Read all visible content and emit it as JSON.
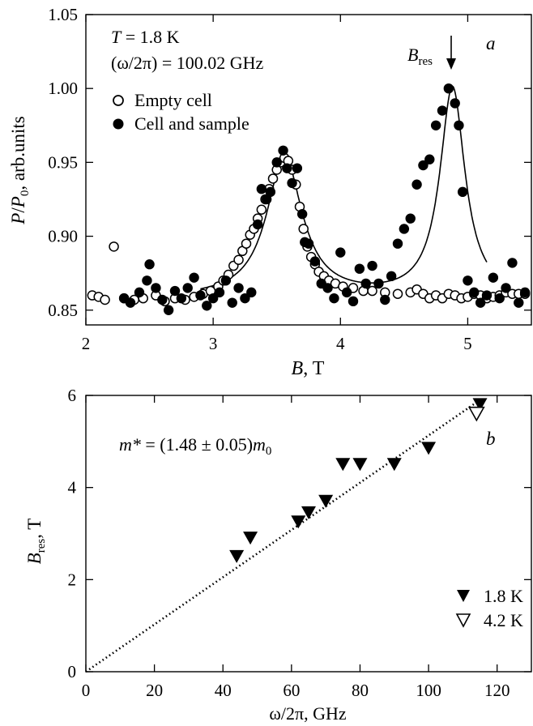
{
  "chart_data": [
    {
      "type": "scatter",
      "panel_label": "a",
      "annotations": {
        "temperature_var": "T",
        "temperature_value": " = 1.8 K",
        "frequency": "(ω/2π) = 100.02 GHz",
        "bres_base": "B",
        "bres_sub": "res"
      },
      "xlabel": {
        "var": "B",
        "rest": ", T"
      },
      "ylabel": {
        "var1": "P",
        "mid": "/",
        "var2": "P",
        "sub": "0",
        "rest": ", arb.units"
      },
      "xlim": [
        2,
        5.5
      ],
      "ylim": [
        0.84,
        1.05
      ],
      "xticks": [
        "2",
        "3",
        "4",
        "5"
      ],
      "yticks": [
        "0.85",
        "0.90",
        "0.95",
        "1.00",
        "1.05"
      ],
      "legend_position": "top-left",
      "series": [
        {
          "name": "Empty cell",
          "marker": "open-circle",
          "points": [
            [
              2.05,
              0.86
            ],
            [
              2.1,
              0.859
            ],
            [
              2.15,
              0.857
            ],
            [
              2.22,
              0.893
            ],
            [
              2.3,
              0.858
            ],
            [
              2.38,
              0.857
            ],
            [
              2.45,
              0.858
            ],
            [
              2.55,
              0.86
            ],
            [
              2.62,
              0.856
            ],
            [
              2.7,
              0.858
            ],
            [
              2.78,
              0.857
            ],
            [
              2.85,
              0.859
            ],
            [
              2.92,
              0.861
            ],
            [
              2.98,
              0.863
            ],
            [
              3.04,
              0.866
            ],
            [
              3.08,
              0.87
            ],
            [
              3.12,
              0.874
            ],
            [
              3.16,
              0.88
            ],
            [
              3.2,
              0.884
            ],
            [
              3.23,
              0.89
            ],
            [
              3.26,
              0.895
            ],
            [
              3.29,
              0.901
            ],
            [
              3.32,
              0.905
            ],
            [
              3.35,
              0.912
            ],
            [
              3.38,
              0.918
            ],
            [
              3.41,
              0.925
            ],
            [
              3.44,
              0.932
            ],
            [
              3.47,
              0.939
            ],
            [
              3.5,
              0.945
            ],
            [
              3.53,
              0.95
            ],
            [
              3.56,
              0.953
            ],
            [
              3.59,
              0.951
            ],
            [
              3.62,
              0.945
            ],
            [
              3.65,
              0.935
            ],
            [
              3.68,
              0.92
            ],
            [
              3.71,
              0.905
            ],
            [
              3.74,
              0.893
            ],
            [
              3.77,
              0.886
            ],
            [
              3.8,
              0.881
            ],
            [
              3.83,
              0.876
            ],
            [
              3.87,
              0.873
            ],
            [
              3.91,
              0.87
            ],
            [
              3.96,
              0.868
            ],
            [
              4.02,
              0.866
            ],
            [
              4.1,
              0.865
            ],
            [
              4.18,
              0.863
            ],
            [
              4.25,
              0.863
            ],
            [
              4.35,
              0.862
            ],
            [
              4.45,
              0.861
            ],
            [
              4.55,
              0.862
            ],
            [
              4.6,
              0.864
            ],
            [
              4.65,
              0.861
            ],
            [
              4.7,
              0.858
            ],
            [
              4.75,
              0.86
            ],
            [
              4.8,
              0.858
            ],
            [
              4.85,
              0.861
            ],
            [
              4.9,
              0.86
            ],
            [
              4.95,
              0.858
            ],
            [
              5.0,
              0.859
            ],
            [
              5.05,
              0.861
            ],
            [
              5.1,
              0.86
            ],
            [
              5.15,
              0.858
            ],
            [
              5.2,
              0.859
            ],
            [
              5.25,
              0.86
            ],
            [
              5.3,
              0.862
            ],
            [
              5.35,
              0.861
            ],
            [
              5.4,
              0.861
            ],
            [
              5.45,
              0.861
            ]
          ]
        },
        {
          "name": "Cell and sample",
          "marker": "filled-circle",
          "points": [
            [
              2.3,
              0.858
            ],
            [
              2.35,
              0.855
            ],
            [
              2.42,
              0.862
            ],
            [
              2.48,
              0.87
            ],
            [
              2.5,
              0.881
            ],
            [
              2.55,
              0.865
            ],
            [
              2.6,
              0.857
            ],
            [
              2.65,
              0.85
            ],
            [
              2.7,
              0.863
            ],
            [
              2.75,
              0.858
            ],
            [
              2.8,
              0.865
            ],
            [
              2.85,
              0.872
            ],
            [
              2.9,
              0.86
            ],
            [
              2.95,
              0.853
            ],
            [
              3.0,
              0.858
            ],
            [
              3.05,
              0.862
            ],
            [
              3.1,
              0.87
            ],
            [
              3.15,
              0.855
            ],
            [
              3.2,
              0.865
            ],
            [
              3.25,
              0.858
            ],
            [
              3.3,
              0.862
            ],
            [
              3.35,
              0.908
            ],
            [
              3.38,
              0.932
            ],
            [
              3.42,
              0.925
            ],
            [
              3.45,
              0.93
            ],
            [
              3.5,
              0.95
            ],
            [
              3.55,
              0.958
            ],
            [
              3.58,
              0.946
            ],
            [
              3.62,
              0.936
            ],
            [
              3.66,
              0.946
            ],
            [
              3.7,
              0.915
            ],
            [
              3.72,
              0.896
            ],
            [
              3.75,
              0.895
            ],
            [
              3.8,
              0.883
            ],
            [
              3.85,
              0.868
            ],
            [
              3.9,
              0.865
            ],
            [
              3.95,
              0.858
            ],
            [
              4.0,
              0.889
            ],
            [
              4.05,
              0.862
            ],
            [
              4.1,
              0.856
            ],
            [
              4.15,
              0.878
            ],
            [
              4.2,
              0.868
            ],
            [
              4.25,
              0.88
            ],
            [
              4.3,
              0.868
            ],
            [
              4.35,
              0.857
            ],
            [
              4.4,
              0.873
            ],
            [
              4.45,
              0.895
            ],
            [
              4.5,
              0.905
            ],
            [
              4.55,
              0.912
            ],
            [
              4.6,
              0.935
            ],
            [
              4.65,
              0.948
            ],
            [
              4.7,
              0.952
            ],
            [
              4.75,
              0.975
            ],
            [
              4.8,
              0.985
            ],
            [
              4.85,
              1.0
            ],
            [
              4.9,
              0.99
            ],
            [
              4.93,
              0.975
            ],
            [
              4.96,
              0.93
            ],
            [
              5.0,
              0.87
            ],
            [
              5.05,
              0.862
            ],
            [
              5.1,
              0.855
            ],
            [
              5.15,
              0.86
            ],
            [
              5.2,
              0.872
            ],
            [
              5.25,
              0.858
            ],
            [
              5.3,
              0.865
            ],
            [
              5.35,
              0.882
            ],
            [
              5.4,
              0.855
            ],
            [
              5.45,
              0.862
            ]
          ]
        }
      ]
    },
    {
      "type": "scatter",
      "panel_label": "b",
      "annotation": {
        "base": "m*",
        "rest": " = (1.48 ± 0.05)",
        "m": "m",
        "sub": "0"
      },
      "xlabel": "ω/2π, GHz",
      "ylabel": {
        "base": "B",
        "sub": "res",
        "rest": ", T"
      },
      "xlim": [
        0,
        130
      ],
      "ylim": [
        0,
        6
      ],
      "xticks": [
        "0",
        "20",
        "40",
        "60",
        "80",
        "100",
        "120"
      ],
      "yticks": [
        "0",
        "2",
        "4",
        "6"
      ],
      "legend_position": "bottom-right",
      "fit_line": {
        "x": [
          0,
          115
        ],
        "y": [
          0,
          5.9
        ],
        "style": "dotted"
      },
      "series": [
        {
          "name": "1.8 K",
          "marker": "filled-triangle-down",
          "points": [
            [
              44,
              2.5
            ],
            [
              48,
              2.9
            ],
            [
              62,
              3.25
            ],
            [
              65,
              3.45
            ],
            [
              70,
              3.7
            ],
            [
              75,
              4.5
            ],
            [
              80,
              4.5
            ],
            [
              90,
              4.5
            ],
            [
              100,
              4.85
            ],
            [
              115,
              5.8
            ]
          ]
        },
        {
          "name": "4.2 K",
          "marker": "open-triangle-down",
          "points": [
            [
              114,
              5.6
            ]
          ]
        }
      ]
    }
  ]
}
